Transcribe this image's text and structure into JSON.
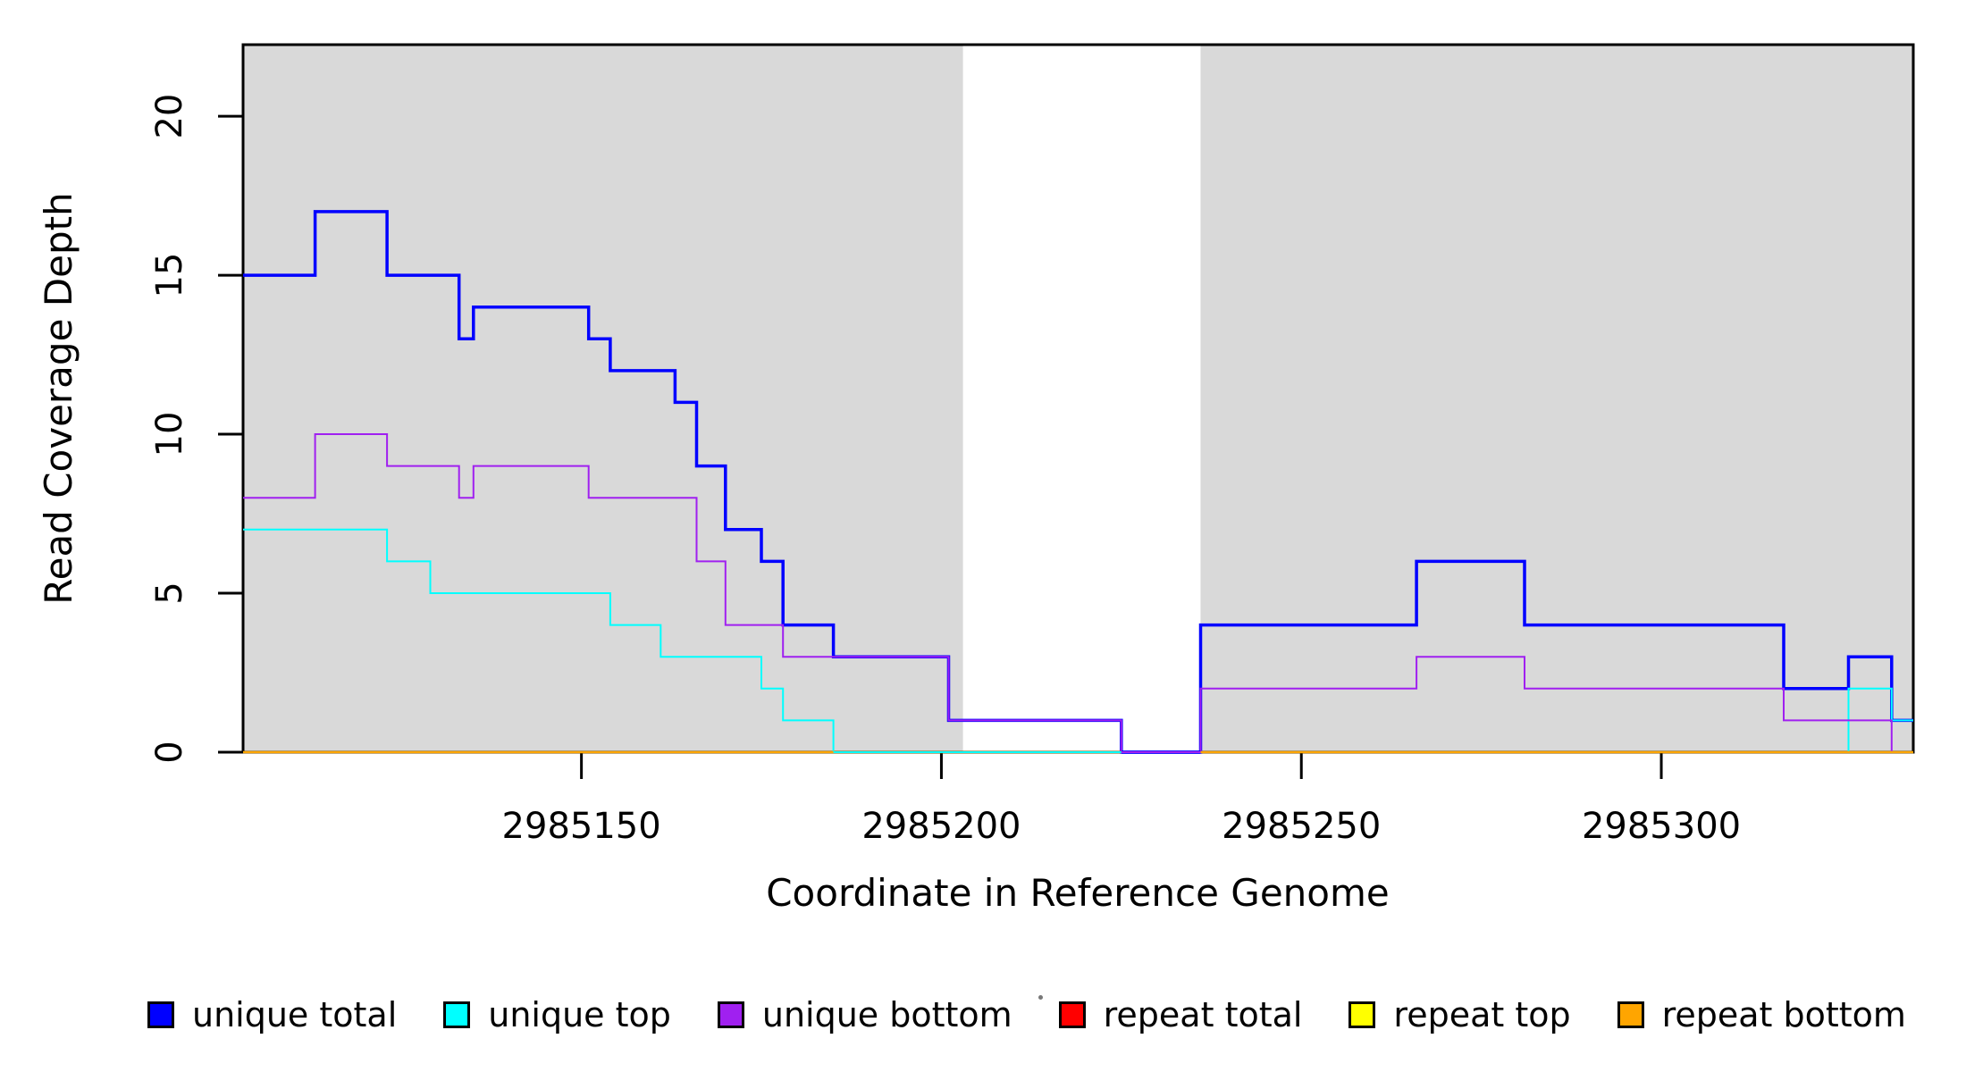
{
  "figure": {
    "background": "#ffffff",
    "shade_color": "#d9d9d9",
    "box_color": "#000000"
  },
  "chart_data": {
    "type": "line",
    "subtype": "step-coverage",
    "title": "",
    "xlabel": "Coordinate in Reference Genome",
    "ylabel": "Read Coverage Depth",
    "xlim": [
      2985103,
      2985335
    ],
    "ylim": [
      0,
      22.25
    ],
    "x_ticks": [
      2985150,
      2985200,
      2985250,
      2985300
    ],
    "y_ticks": [
      0,
      5,
      10,
      15,
      20
    ],
    "grid": false,
    "legend_position": "bottom",
    "shaded_regions": [
      {
        "from": 2985103,
        "to": 2985203
      },
      {
        "from": 2985236,
        "to": 2985335
      }
    ],
    "series": [
      {
        "name": "unique total",
        "color": "#0000ff",
        "width": 3.5,
        "segments": [
          [
            2985103,
            2985113,
            15
          ],
          [
            2985113,
            2985123,
            17
          ],
          [
            2985123,
            2985133,
            15
          ],
          [
            2985133,
            2985135,
            13
          ],
          [
            2985135,
            2985151,
            14
          ],
          [
            2985151,
            2985154,
            13
          ],
          [
            2985154,
            2985163,
            12
          ],
          [
            2985163,
            2985166,
            11
          ],
          [
            2985166,
            2985170,
            9
          ],
          [
            2985170,
            2985175,
            7
          ],
          [
            2985175,
            2985178,
            6
          ],
          [
            2985178,
            2985185,
            4
          ],
          [
            2985185,
            2985201,
            3
          ],
          [
            2985201,
            2985225,
            1
          ],
          [
            2985225,
            2985236,
            0
          ],
          [
            2985236,
            2985266,
            4
          ],
          [
            2985266,
            2985281,
            6
          ],
          [
            2985281,
            2985317,
            4
          ],
          [
            2985317,
            2985326,
            2
          ],
          [
            2985326,
            2985332,
            3
          ],
          [
            2985332,
            2985335,
            1
          ]
        ]
      },
      {
        "name": "unique top",
        "color": "#00ffff",
        "width": 2,
        "segments": [
          [
            2985103,
            2985123,
            7
          ],
          [
            2985123,
            2985129,
            6
          ],
          [
            2985129,
            2985154,
            5
          ],
          [
            2985154,
            2985161,
            4
          ],
          [
            2985161,
            2985175,
            3
          ],
          [
            2985175,
            2985178,
            2
          ],
          [
            2985178,
            2985185,
            1
          ],
          [
            2985185,
            2985326,
            0
          ],
          [
            2985326,
            2985332,
            2
          ],
          [
            2985332,
            2985335,
            1
          ]
        ]
      },
      {
        "name": "unique bottom",
        "color": "#a020f0",
        "width": 2,
        "segments": [
          [
            2985103,
            2985113,
            8
          ],
          [
            2985113,
            2985123,
            10
          ],
          [
            2985123,
            2985133,
            9
          ],
          [
            2985133,
            2985135,
            8
          ],
          [
            2985135,
            2985151,
            9
          ],
          [
            2985151,
            2985166,
            8
          ],
          [
            2985166,
            2985170,
            6
          ],
          [
            2985170,
            2985178,
            4
          ],
          [
            2985178,
            2985201,
            3
          ],
          [
            2985201,
            2985225,
            1
          ],
          [
            2985225,
            2985236,
            0
          ],
          [
            2985236,
            2985266,
            2
          ],
          [
            2985266,
            2985281,
            3
          ],
          [
            2985281,
            2985317,
            2
          ],
          [
            2985317,
            2985332,
            1
          ],
          [
            2985332,
            2985335,
            0
          ]
        ]
      },
      {
        "name": "repeat total",
        "color": "#ff0000",
        "width": 2,
        "segments": [
          [
            2985103,
            2985335,
            0
          ]
        ]
      },
      {
        "name": "repeat top",
        "color": "#ffff00",
        "width": 2,
        "segments": [
          [
            2985103,
            2985335,
            0
          ]
        ]
      },
      {
        "name": "repeat bottom",
        "color": "#ffa500",
        "width": 2.5,
        "segments": [
          [
            2985103,
            2985335,
            0
          ]
        ]
      }
    ],
    "zero_overlays": [
      {
        "series": "unique top",
        "from": 2985185,
        "to": 2985225
      },
      {
        "series": "unique total",
        "from": 2985225,
        "to": 2985236
      },
      {
        "series": "unique bottom",
        "from": 2985225,
        "to": 2985236
      }
    ]
  },
  "legend": {
    "items": [
      {
        "label": "unique total",
        "color": "#0000ff"
      },
      {
        "label": "unique top",
        "color": "#00ffff"
      },
      {
        "label": "unique bottom",
        "color": "#a020f0"
      },
      {
        "label": "repeat total",
        "color": "#ff0000"
      },
      {
        "label": "repeat top",
        "color": "#ffff00"
      },
      {
        "label": "repeat bottom",
        "color": "#ffa500"
      }
    ]
  }
}
